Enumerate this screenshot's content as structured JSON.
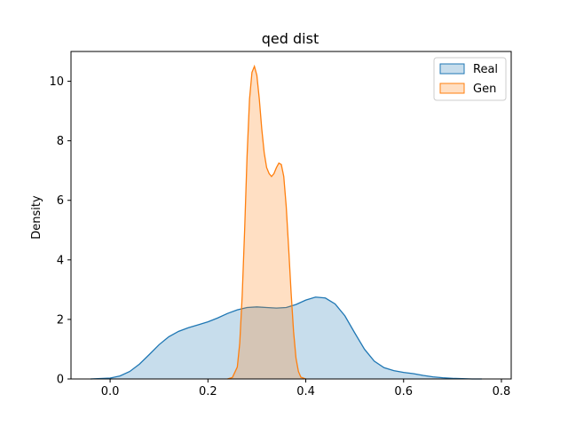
{
  "chart_data": {
    "type": "area",
    "title": "qed dist",
    "xlabel": "",
    "ylabel": "Density",
    "xlim": [
      -0.08,
      0.82
    ],
    "ylim": [
      0,
      11
    ],
    "x_ticks": [
      0.0,
      0.2,
      0.4,
      0.6,
      0.8
    ],
    "x_tick_labels": [
      "0.0",
      "0.2",
      "0.4",
      "0.6",
      "0.8"
    ],
    "y_ticks": [
      0,
      2,
      4,
      6,
      8,
      10
    ],
    "y_tick_labels": [
      "0",
      "2",
      "4",
      "6",
      "8",
      "10"
    ],
    "grid": false,
    "legend_position": "top-right",
    "series": [
      {
        "name": "Real",
        "color": "#1f77b4",
        "fill": "#1f77b4",
        "x": [
          -0.04,
          0.0,
          0.02,
          0.04,
          0.06,
          0.08,
          0.1,
          0.12,
          0.14,
          0.16,
          0.18,
          0.2,
          0.22,
          0.24,
          0.26,
          0.28,
          0.3,
          0.32,
          0.34,
          0.36,
          0.38,
          0.4,
          0.42,
          0.44,
          0.46,
          0.48,
          0.5,
          0.52,
          0.54,
          0.56,
          0.58,
          0.6,
          0.62,
          0.64,
          0.66,
          0.68,
          0.7,
          0.72,
          0.74,
          0.76
        ],
        "y": [
          0.0,
          0.03,
          0.1,
          0.25,
          0.5,
          0.82,
          1.15,
          1.42,
          1.6,
          1.72,
          1.82,
          1.92,
          2.05,
          2.2,
          2.32,
          2.4,
          2.42,
          2.4,
          2.38,
          2.4,
          2.5,
          2.65,
          2.75,
          2.72,
          2.52,
          2.12,
          1.55,
          1.0,
          0.6,
          0.38,
          0.28,
          0.22,
          0.18,
          0.12,
          0.07,
          0.04,
          0.02,
          0.01,
          0.0,
          0.0
        ]
      },
      {
        "name": "Gen",
        "color": "#ff7f0e",
        "fill": "#ff7f0e",
        "x": [
          0.24,
          0.25,
          0.26,
          0.265,
          0.27,
          0.275,
          0.28,
          0.285,
          0.29,
          0.295,
          0.3,
          0.305,
          0.31,
          0.315,
          0.32,
          0.325,
          0.33,
          0.335,
          0.34,
          0.345,
          0.35,
          0.355,
          0.36,
          0.365,
          0.37,
          0.375,
          0.38,
          0.385,
          0.39,
          0.4
        ],
        "y": [
          0.0,
          0.05,
          0.4,
          1.2,
          2.8,
          5.0,
          7.5,
          9.4,
          10.3,
          10.5,
          10.2,
          9.4,
          8.4,
          7.6,
          7.1,
          6.9,
          6.8,
          6.9,
          7.1,
          7.25,
          7.2,
          6.8,
          5.8,
          4.4,
          2.9,
          1.6,
          0.7,
          0.25,
          0.06,
          0.0
        ]
      }
    ]
  }
}
